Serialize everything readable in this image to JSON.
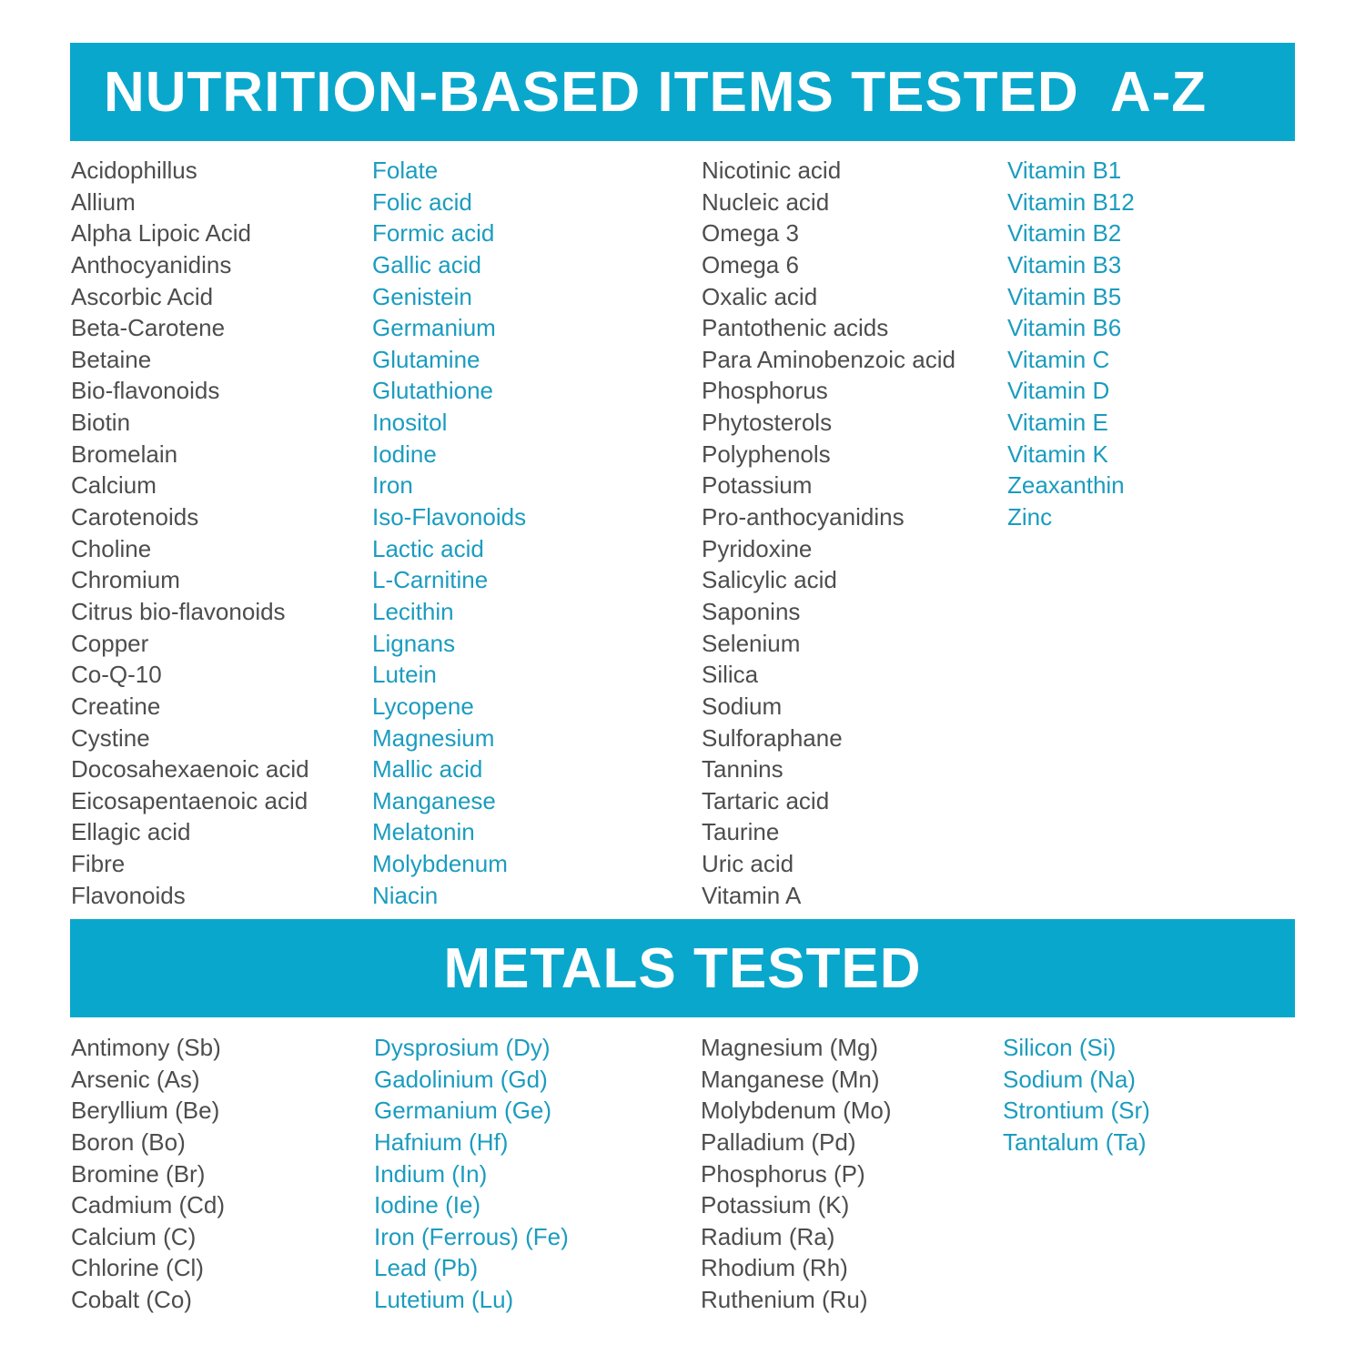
{
  "nutrition": {
    "title": "NUTRITION-BASED ITEMS TESTED  A-Z",
    "columns": [
      [
        "Acidophillus",
        "Allium",
        "Alpha Lipoic Acid",
        "Anthocyanidins",
        "Ascorbic Acid",
        "Beta-Carotene",
        "Betaine",
        "Bio-flavonoids",
        "Biotin",
        "Bromelain",
        "Calcium",
        "Carotenoids",
        "Choline",
        "Chromium",
        "Citrus bio-flavonoids",
        "Copper",
        "Co-Q-10",
        "Creatine",
        "Cystine",
        "Docosahexaenoic acid",
        "Eicosapentaenoic acid",
        "Ellagic acid",
        "Fibre",
        "Flavonoids"
      ],
      [
        "Folate",
        "Folic acid",
        "Formic acid",
        "Gallic acid",
        "Genistein",
        "Germanium",
        "Glutamine",
        "Glutathione",
        "Inositol",
        "Iodine",
        "Iron",
        "Iso-Flavonoids",
        "Lactic acid",
        "L-Carnitine",
        "Lecithin",
        "Lignans",
        "Lutein",
        "Lycopene",
        "Magnesium",
        "Mallic acid",
        "Manganese",
        "Melatonin",
        "Molybdenum",
        "Niacin"
      ],
      [
        "Nicotinic acid",
        "Nucleic acid",
        "Omega 3",
        "Omega 6",
        "Oxalic acid",
        "Pantothenic acids",
        "Para Aminobenzoic acid",
        "Phosphorus",
        "Phytosterols",
        "Polyphenols",
        "Potassium",
        "Pro-anthocyanidins",
        "Pyridoxine",
        "Salicylic acid",
        "Saponins",
        "Selenium",
        "Silica",
        "Sodium",
        "Sulforaphane",
        "Tannins",
        "Tartaric acid",
        "Taurine",
        "Uric acid",
        "Vitamin A"
      ],
      [
        "Vitamin B1",
        "Vitamin B12",
        "Vitamin B2",
        "Vitamin B3",
        "Vitamin B5",
        "Vitamin B6",
        "Vitamin C",
        "Vitamin D",
        "Vitamin E",
        "Vitamin K",
        "Zeaxanthin",
        "Zinc"
      ]
    ]
  },
  "metals": {
    "title": "METALS TESTED",
    "columns": [
      [
        "Antimony (Sb)",
        "Arsenic (As)",
        "Beryllium (Be)",
        "Boron (Bo)",
        "Bromine (Br)",
        "Cadmium (Cd)",
        "Calcium (C)",
        "Chlorine (Cl)",
        "Cobalt (Co)"
      ],
      [
        "Dysprosium (Dy)",
        "Gadolinium (Gd)",
        "Germanium (Ge)",
        "Hafnium (Hf)",
        "Indium (In)",
        "Iodine (Ie)",
        "Iron (Ferrous) (Fe)",
        "Lead (Pb)",
        "Lutetium (Lu)"
      ],
      [
        "Magnesium (Mg)",
        "Manganese (Mn)",
        "Molybdenum (Mo)",
        "Palladium (Pd)",
        "Phosphorus (P)",
        "Potassium (K)",
        "Radium (Ra)",
        "Rhodium (Rh)",
        "Ruthenium (Ru)"
      ],
      [
        "Silicon (Si)",
        "Sodium (Na)",
        "Strontium (Sr)",
        "Tantalum (Ta)"
      ]
    ]
  },
  "colors": {
    "banner": "#0aa7cc",
    "text_gray": "#4d4d4d",
    "text_blue": "#1b9cbf"
  }
}
